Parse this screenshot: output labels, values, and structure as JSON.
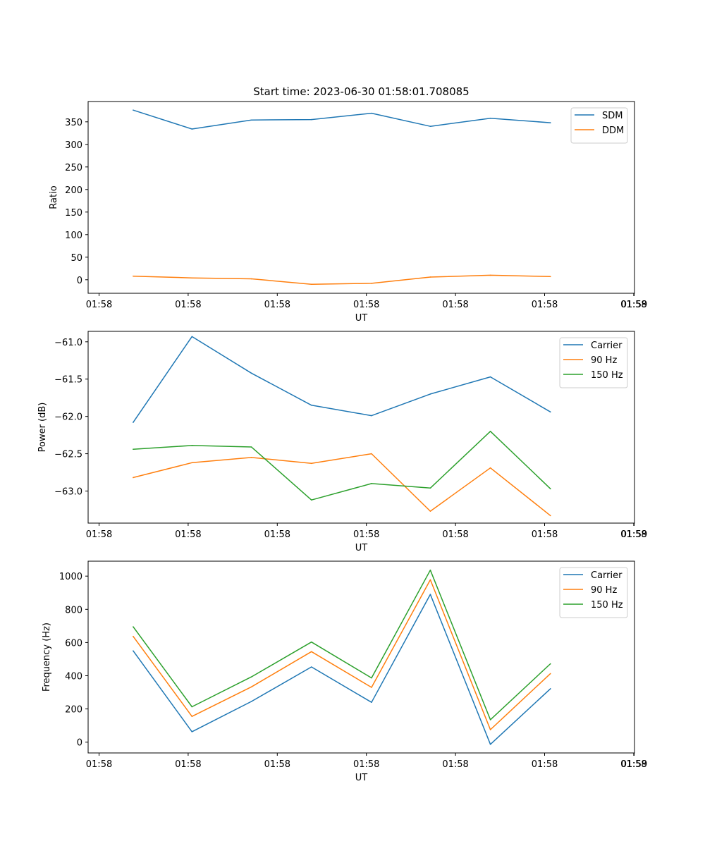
{
  "figure": {
    "title": "Start time: 2023-06-30 01:58:01.708085"
  },
  "chart_data": [
    {
      "type": "line",
      "title": "Start time: 2023-06-30 01:58:01.708085",
      "xlabel": "UT",
      "ylabel": "Ratio",
      "x_tick_labels": [
        "01:58",
        "01:58",
        "01:58",
        "01:58",
        "01:58",
        "01:58",
        "01:58"
      ],
      "x_end_tick_label": "01:59",
      "xlim": [
        -0.6,
        8.5
      ],
      "x": [
        0.15,
        1.13,
        2.12,
        3.12,
        4.12,
        5.1,
        6.1,
        7.1
      ],
      "ylim": [
        -30,
        395
      ],
      "y_ticks": [
        0,
        50,
        100,
        150,
        200,
        250,
        300,
        350
      ],
      "legend_position": "top-right",
      "grid": false,
      "series": [
        {
          "name": "SDM",
          "color": "#1f77b4",
          "values": [
            376,
            334,
            354,
            355,
            369,
            340,
            358,
            348
          ]
        },
        {
          "name": "DDM",
          "color": "#ff7f0e",
          "values": [
            8,
            4,
            2,
            -10,
            -8,
            6,
            10,
            7
          ]
        }
      ]
    },
    {
      "type": "line",
      "xlabel": "UT",
      "ylabel": "Power (dB)",
      "x_tick_labels": [
        "01:58",
        "01:58",
        "01:58",
        "01:58",
        "01:58",
        "01:58",
        "01:58"
      ],
      "x_end_tick_label": "01:59",
      "xlim": [
        -0.6,
        8.5
      ],
      "x": [
        0.15,
        1.13,
        2.12,
        3.12,
        4.12,
        5.1,
        6.1,
        7.1
      ],
      "ylim": [
        -63.43,
        -60.86
      ],
      "y_ticks": [
        -63.0,
        -62.5,
        -62.0,
        -61.5,
        -61.0
      ],
      "y_tick_labels": [
        "−63.0",
        "−62.5",
        "−62.0",
        "−61.5",
        "−61.0"
      ],
      "legend_position": "top-right",
      "grid": false,
      "series": [
        {
          "name": "Carrier",
          "color": "#1f77b4",
          "values": [
            -62.08,
            -60.93,
            -61.42,
            -61.85,
            -61.99,
            -61.7,
            -61.47,
            -61.94
          ]
        },
        {
          "name": "90 Hz",
          "color": "#ff7f0e",
          "values": [
            -62.82,
            -62.62,
            -62.55,
            -62.63,
            -62.5,
            -63.27,
            -62.69,
            -63.33
          ]
        },
        {
          "name": "150 Hz",
          "color": "#2ca02c",
          "values": [
            -62.44,
            -62.39,
            -62.41,
            -63.12,
            -62.9,
            -62.96,
            -62.2,
            -62.97
          ]
        }
      ]
    },
    {
      "type": "line",
      "xlabel": "UT",
      "ylabel": "Frequency (Hz)",
      "x_tick_labels": [
        "01:58",
        "01:58",
        "01:58",
        "01:58",
        "01:58",
        "01:58",
        "01:58"
      ],
      "x_end_tick_label": "01:59",
      "xlim": [
        -0.6,
        8.5
      ],
      "x": [
        0.15,
        1.13,
        2.12,
        3.12,
        4.12,
        5.1,
        6.1,
        7.1
      ],
      "ylim": [
        -65,
        1090
      ],
      "y_ticks": [
        0,
        200,
        400,
        600,
        800,
        1000
      ],
      "legend_position": "top-right",
      "grid": false,
      "series": [
        {
          "name": "Carrier",
          "color": "#1f77b4",
          "values": [
            550,
            63,
            245,
            453,
            240,
            890,
            -13,
            322
          ]
        },
        {
          "name": "90 Hz",
          "color": "#ff7f0e",
          "values": [
            637,
            155,
            333,
            545,
            330,
            978,
            75,
            413
          ]
        },
        {
          "name": "150 Hz",
          "color": "#2ca02c",
          "values": [
            695,
            213,
            393,
            603,
            387,
            1036,
            135,
            472
          ]
        }
      ]
    }
  ]
}
